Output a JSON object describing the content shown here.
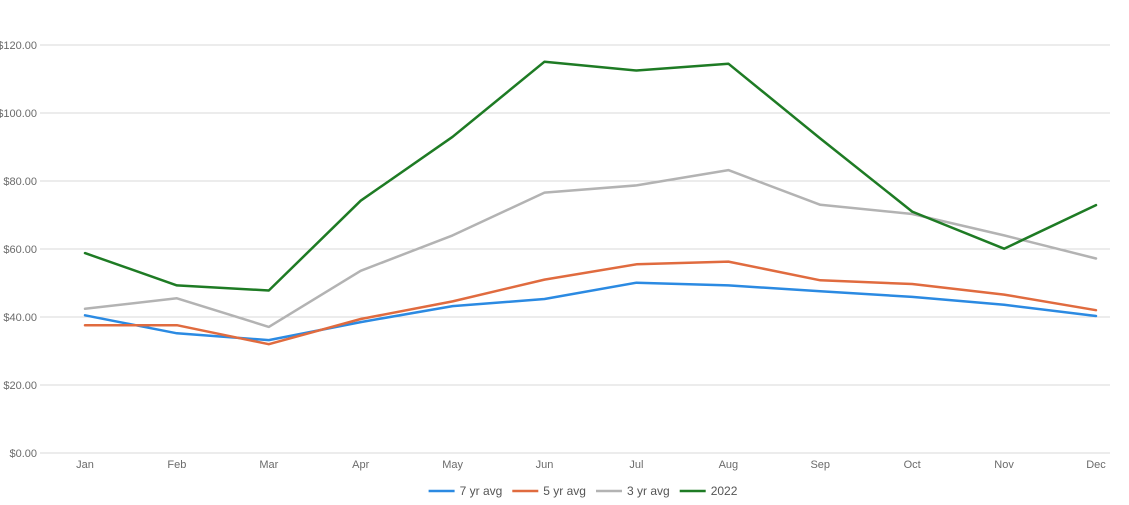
{
  "chart_data": {
    "type": "line",
    "title": "",
    "xlabel": "",
    "ylabel": "",
    "categories": [
      "Jan",
      "Feb",
      "Mar",
      "Apr",
      "May",
      "Jun",
      "Jul",
      "Aug",
      "Sep",
      "Oct",
      "Nov",
      "Dec"
    ],
    "ylim": [
      0,
      120
    ],
    "yticks": [
      0,
      20,
      40,
      60,
      80,
      100,
      120
    ],
    "ytick_labels": [
      "$0.00",
      "$20.00",
      "$40.00",
      "$60.00",
      "$80.00",
      "$100.00",
      "$120.00"
    ],
    "grid": true,
    "legend_position": "bottom",
    "series": [
      {
        "name": "7 yr avg",
        "color": "#2b8ae2",
        "values": [
          40.5,
          35.2,
          33.2,
          38.5,
          43.2,
          45.3,
          50.1,
          49.3,
          47.6,
          45.9,
          43.6,
          40.3
        ]
      },
      {
        "name": "5 yr avg",
        "color": "#e06b3f",
        "values": [
          37.6,
          37.6,
          32.0,
          39.4,
          44.6,
          51.0,
          55.5,
          56.3,
          50.8,
          49.7,
          46.6,
          42.0
        ]
      },
      {
        "name": "3 yr avg",
        "color": "#b3b3b3",
        "values": [
          42.4,
          45.5,
          37.1,
          53.6,
          64.0,
          76.6,
          78.7,
          83.2,
          73.0,
          70.3,
          64.0,
          57.2
        ]
      },
      {
        "name": "2022",
        "color": "#1e7b24",
        "values": [
          58.8,
          49.3,
          47.8,
          74.2,
          93.0,
          115.1,
          112.5,
          114.5,
          92.5,
          71.0,
          60.1,
          72.9
        ]
      }
    ]
  }
}
